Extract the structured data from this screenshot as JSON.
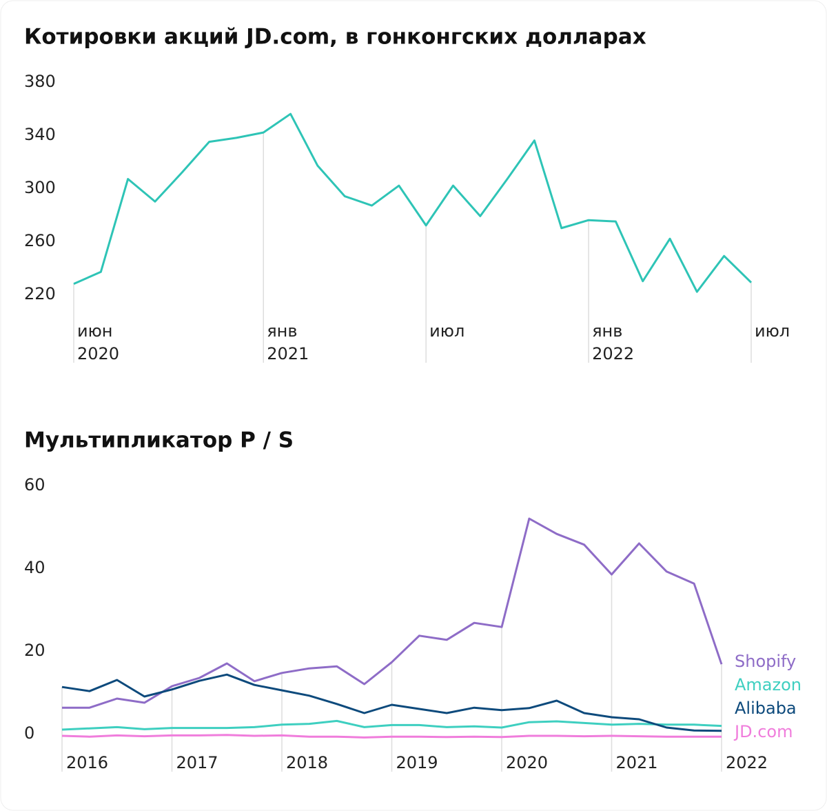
{
  "chart_data": [
    {
      "type": "line",
      "title": "Котировки акций JD.com, в гонконгских долларах",
      "categories": [
        [
          "июн",
          "2020"
        ],
        null,
        null,
        null,
        null,
        null,
        null,
        [
          "янв",
          "2021"
        ],
        null,
        null,
        null,
        null,
        null,
        [
          "июл"
        ],
        null,
        null,
        null,
        null,
        null,
        [
          "янв",
          "2022"
        ],
        null,
        null,
        null,
        null,
        null,
        [
          "июл"
        ]
      ],
      "series": [
        {
          "name": "JD.com",
          "color": "#2ec4b6",
          "values": [
            228,
            237,
            307,
            290,
            312,
            335,
            338,
            342,
            356,
            317,
            294,
            287,
            302,
            272,
            302,
            279,
            307,
            336,
            270,
            276,
            275,
            230,
            262,
            222,
            249,
            229
          ]
        }
      ],
      "ylim": [
        220,
        380
      ],
      "yticks": [
        220,
        260,
        300,
        340,
        380
      ]
    },
    {
      "type": "line",
      "title": "Мультипликатор P / S",
      "categories": [
        "2016",
        null,
        null,
        null,
        "2017",
        null,
        null,
        null,
        "2018",
        null,
        null,
        null,
        "2019",
        null,
        null,
        null,
        "2020",
        null,
        null,
        null,
        "2021",
        null,
        null,
        null,
        "2022"
      ],
      "series": [
        {
          "name": "Shopify",
          "color": "#8e6cc7",
          "values": [
            6.3,
            6.3,
            8.5,
            7.5,
            11.5,
            13.5,
            17,
            12.7,
            14.7,
            15.8,
            16.3,
            12,
            17.3,
            23.7,
            22.7,
            26.8,
            25.8,
            52,
            48.3,
            45.7,
            38.5,
            46,
            39.2,
            36.3,
            16.8
          ]
        },
        {
          "name": "Amazon",
          "color": "#3ecfc0",
          "values": [
            1,
            1.3,
            1.6,
            1.1,
            1.4,
            1.4,
            1.4,
            1.6,
            2.2,
            2.4,
            3.1,
            1.6,
            2.1,
            2.1,
            1.6,
            1.8,
            1.5,
            2.8,
            3,
            2.6,
            2.2,
            2.4,
            2.2,
            2.2,
            1.9
          ]
        },
        {
          "name": "Alibaba",
          "color": "#0d4a7c",
          "values": [
            11.3,
            10.3,
            13,
            9,
            10.7,
            12.8,
            14.3,
            11.8,
            10.5,
            9.2,
            7.2,
            5,
            7,
            6,
            5,
            6.3,
            5.7,
            6.2,
            8,
            5,
            4,
            3.5,
            1.5,
            0.8,
            0.7
          ]
        },
        {
          "name": "JD.com",
          "color": "#f07ddc",
          "values": [
            -0.5,
            -0.7,
            -0.4,
            -0.6,
            -0.4,
            -0.4,
            -0.3,
            -0.5,
            -0.4,
            -0.7,
            -0.7,
            -0.9,
            -0.7,
            -0.7,
            -0.8,
            -0.7,
            -0.8,
            -0.5,
            -0.5,
            -0.6,
            -0.5,
            -0.6,
            -0.7,
            -0.7,
            -0.7
          ]
        }
      ],
      "ylim": [
        0,
        60
      ],
      "yticks": [
        0,
        20,
        40,
        60
      ]
    }
  ]
}
